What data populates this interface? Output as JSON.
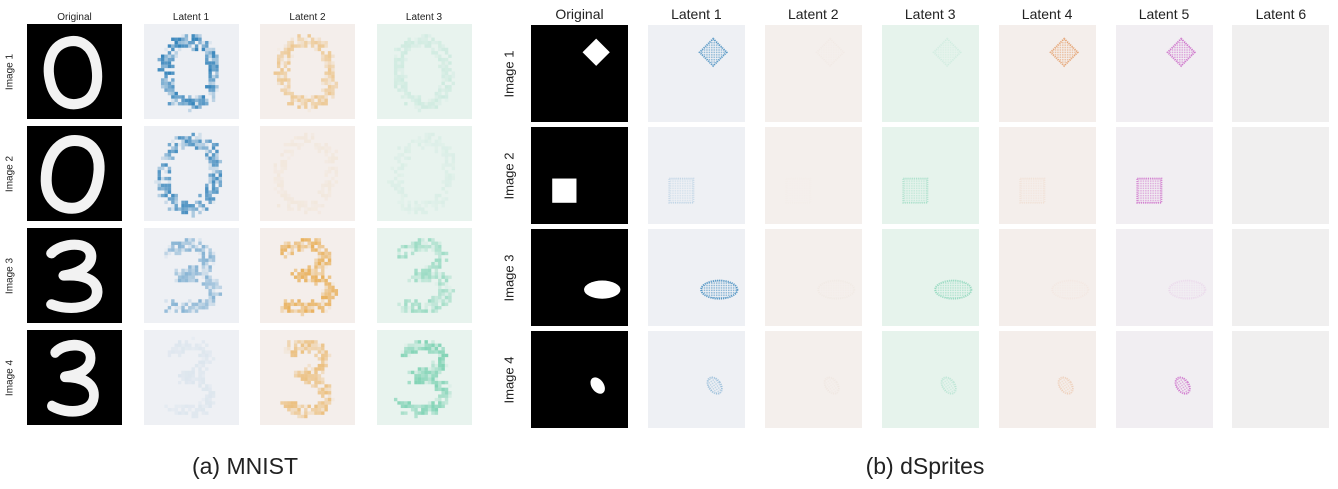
{
  "panel_a": {
    "caption": "(a) MNIST",
    "columns": [
      "Original",
      "Latent 1",
      "Latent 2",
      "Latent 3"
    ],
    "rows": [
      "Image 1",
      "Image 2",
      "Image 3",
      "Image 4"
    ],
    "images": [
      {
        "digit": "0",
        "latent_intensity": [
          0.9,
          0.5,
          0.15
        ]
      },
      {
        "digit": "0",
        "latent_intensity": [
          0.8,
          0.08,
          0.08
        ]
      },
      {
        "digit": "3",
        "latent_intensity": [
          0.5,
          0.8,
          0.45
        ]
      },
      {
        "digit": "3",
        "latent_intensity": [
          0.08,
          0.6,
          0.6
        ]
      }
    ],
    "latent_colors": {
      "Latent 1": {
        "background": "#eef0f4",
        "mark": "#1f77b4"
      },
      "Latent 2": {
        "background": "#f4eeeb",
        "mark": "#e6a23a"
      },
      "Latent 3": {
        "background": "#e8f3ee",
        "mark": "#3fbf91"
      }
    }
  },
  "panel_b": {
    "caption": "(b) dSprites",
    "columns": [
      "Original",
      "Latent 1",
      "Latent 2",
      "Latent 3",
      "Latent 4",
      "Latent 5",
      "Latent 6"
    ],
    "rows": [
      "Image 1",
      "Image 2",
      "Image 3",
      "Image 4"
    ],
    "images": [
      {
        "shape": "diamond",
        "latent_intensity": [
          0.8,
          0.05,
          0.12,
          0.8,
          0.85,
          0.0
        ]
      },
      {
        "shape": "square",
        "latent_intensity": [
          0.2,
          0.02,
          0.35,
          0.12,
          0.75,
          0.0
        ]
      },
      {
        "shape": "ellipse",
        "latent_intensity": [
          0.85,
          0.06,
          0.5,
          0.05,
          0.12,
          0.0
        ]
      },
      {
        "shape": "small-ellipse",
        "latent_intensity": [
          0.4,
          0.1,
          0.25,
          0.3,
          0.8,
          0.0
        ]
      }
    ],
    "latent_colors": {
      "Latent 1": {
        "background": "#eef0f4",
        "mark": "#1f77b4"
      },
      "Latent 2": {
        "background": "#f4efec",
        "mark": "#c8a08a"
      },
      "Latent 3": {
        "background": "#e6f3ec",
        "mark": "#3fbf91"
      },
      "Latent 4": {
        "background": "#f4eeeb",
        "mark": "#e08a4a"
      },
      "Latent 5": {
        "background": "#f1eef2",
        "mark": "#c44fc0"
      },
      "Latent 6": {
        "background": "#f0efef",
        "mark": "#bbbbbb"
      }
    }
  }
}
